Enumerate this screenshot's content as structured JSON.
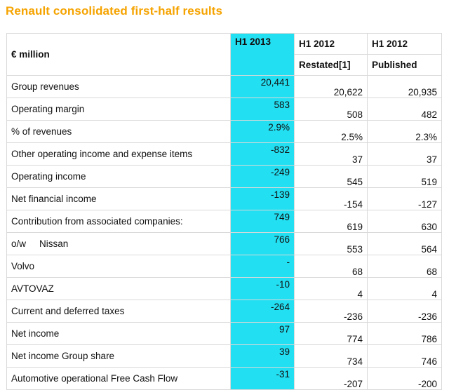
{
  "title": "Renault consolidated first-half results",
  "colors": {
    "title": "#f5a300",
    "highlight": "#22dff2",
    "border": "#d9d9d9"
  },
  "table": {
    "unit_label": "€ million",
    "columns": [
      {
        "line1": "H1 2013",
        "line2": ""
      },
      {
        "line1": "H1 2012",
        "line2": "Restated[1]"
      },
      {
        "line1": "H1 2012",
        "line2": "Published"
      }
    ],
    "rows": [
      {
        "prefix": "",
        "label": "Group revenues",
        "values": [
          "20,441",
          "20,622",
          "20,935"
        ]
      },
      {
        "prefix": "",
        "label": "Operating margin",
        "values": [
          "583",
          "508",
          "482"
        ]
      },
      {
        "prefix": "",
        "label": "% of revenues",
        "values": [
          "2.9%",
          "2.5%",
          "2.3%"
        ]
      },
      {
        "prefix": "",
        "label": "Other operating income and expense items",
        "values": [
          "-832",
          "37",
          "37"
        ]
      },
      {
        "prefix": "",
        "label": "Operating income",
        "values": [
          "-249",
          "545",
          "519"
        ]
      },
      {
        "prefix": "",
        "label": "Net financial income",
        "values": [
          "-139",
          "-154",
          "-127"
        ]
      },
      {
        "prefix": "",
        "label": "Contribution from associated companies:",
        "values": [
          "749",
          "619",
          "630"
        ]
      },
      {
        "prefix": "o/w",
        "label": "Nissan",
        "values": [
          "766",
          "553",
          "564"
        ]
      },
      {
        "prefix": "",
        "label": "Volvo",
        "values": [
          "-",
          "68",
          "68"
        ]
      },
      {
        "prefix": "",
        "label": "AVTOVAZ",
        "values": [
          "-10",
          "4",
          "4"
        ]
      },
      {
        "prefix": "",
        "label": "Current and deferred taxes",
        "values": [
          "-264",
          "-236",
          "-236"
        ]
      },
      {
        "prefix": "",
        "label": "Net income",
        "values": [
          "97",
          "774",
          "786"
        ]
      },
      {
        "prefix": "",
        "label": "Net income Group share",
        "values": [
          "39",
          "734",
          "746"
        ]
      },
      {
        "prefix": "",
        "label": "Automotive operational Free Cash Flow",
        "values": [
          "-31",
          "-207",
          "-200"
        ]
      }
    ]
  }
}
